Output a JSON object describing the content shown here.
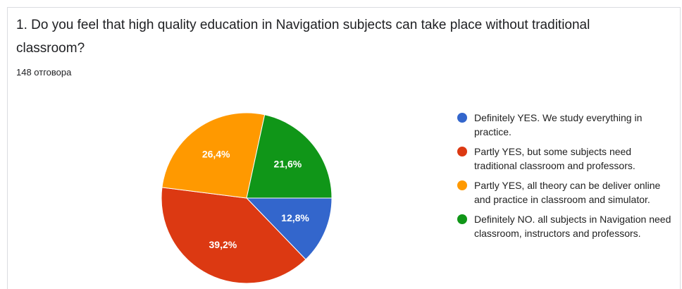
{
  "chart_data": {
    "type": "pie",
    "title": "1. Do you feel that high quality education in Navigation subjects can take place without traditional classroom?",
    "subtitle": "148 отговора",
    "categories": [
      "Definitely YES. We study everything in practice.",
      "Partly YES, but some subjects need traditional classroom and professors.",
      "Partly YES, all theory can be deliver online and practice in classroom and simulator.",
      "Definitely NO. all subjects in Navigation need classroom, instructors and professors."
    ],
    "values": [
      12.8,
      39.2,
      26.4,
      21.6
    ],
    "value_labels": [
      "12,8%",
      "39,2%",
      "26,4%",
      "21,6%"
    ],
    "colors": [
      "#3366cc",
      "#dc3912",
      "#ff9900",
      "#109618"
    ],
    "legend": "right"
  }
}
